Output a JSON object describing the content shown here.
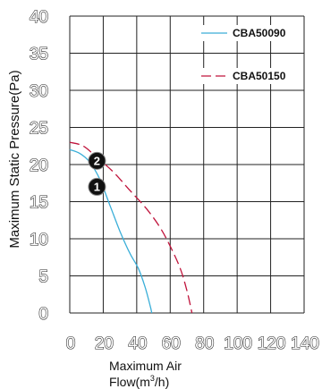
{
  "chart_data": {
    "type": "line",
    "xlabel_line1": "Maximum Air",
    "xlabel_line2_prefix": "Flow(m",
    "xlabel_sup": "3",
    "xlabel_line2_suffix": "/h)",
    "ylabel": "Maximum Static Pressure(Pa)",
    "xlim": [
      0,
      140
    ],
    "ylim": [
      0,
      40
    ],
    "x_ticks": [
      "0",
      "20",
      "40",
      "60",
      "80",
      "100",
      "120",
      "140"
    ],
    "y_ticks": [
      "0",
      "5",
      "10",
      "15",
      "20",
      "25",
      "30",
      "35",
      "40"
    ],
    "grid": true,
    "legend_position": "top-right",
    "series": [
      {
        "name": "CBA50090",
        "color": "#3aaed8",
        "dash": "solid",
        "points": [
          [
            0,
            22
          ],
          [
            6,
            21.5
          ],
          [
            12,
            20.3
          ],
          [
            18,
            18
          ],
          [
            24,
            14.5
          ],
          [
            30,
            11
          ],
          [
            36,
            8
          ],
          [
            41,
            6
          ],
          [
            45,
            3.5
          ],
          [
            48,
            1
          ],
          [
            49,
            0
          ]
        ]
      },
      {
        "name": "CBA50150",
        "color": "#c0143c",
        "dash": "dashed",
        "points": [
          [
            0,
            23
          ],
          [
            8,
            22.5
          ],
          [
            16,
            21
          ],
          [
            26,
            19
          ],
          [
            36,
            16.5
          ],
          [
            46,
            14
          ],
          [
            54,
            11.5
          ],
          [
            60,
            9
          ],
          [
            66,
            6
          ],
          [
            70,
            3
          ],
          [
            73,
            0
          ]
        ]
      }
    ],
    "markers": [
      {
        "label": "2",
        "x": 20,
        "y": 20.5
      },
      {
        "label": "1",
        "x": 20,
        "y": 17
      }
    ]
  }
}
